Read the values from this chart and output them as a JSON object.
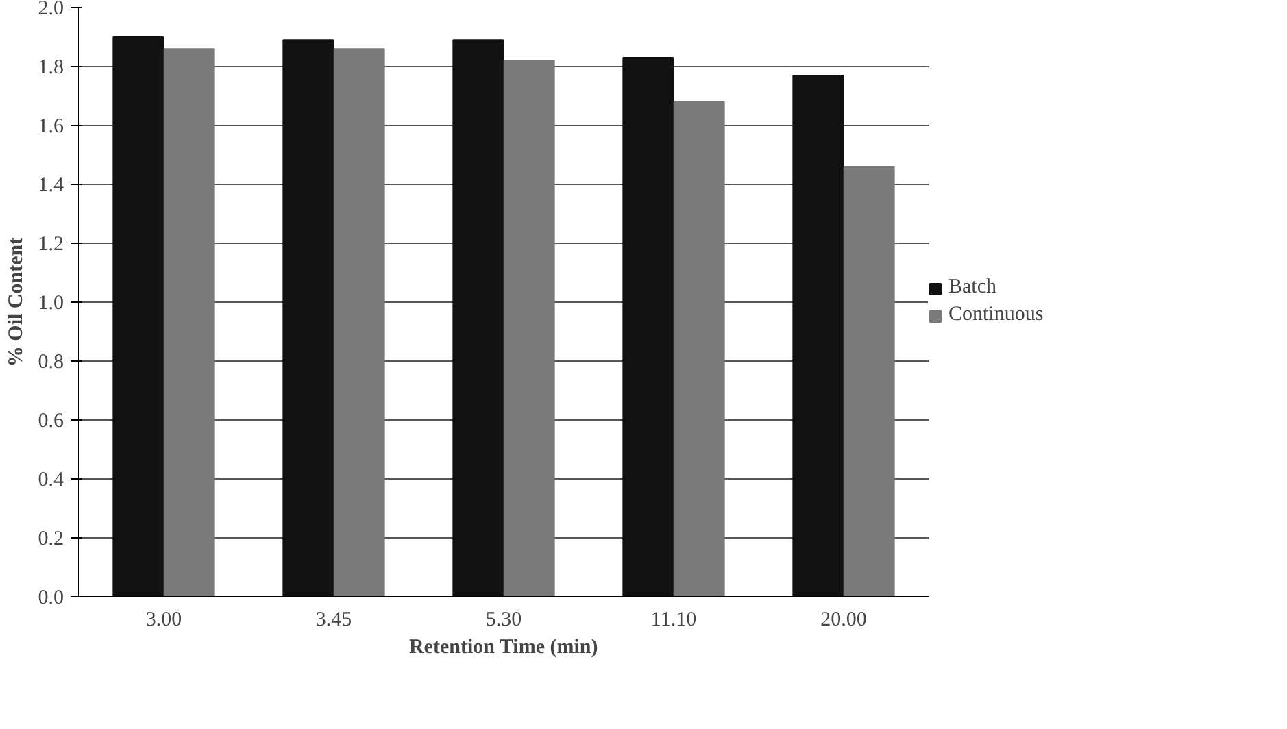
{
  "chart_data": {
    "type": "bar",
    "xlabel": "Retention Time (min)",
    "ylabel": "% Oil Content",
    "categories": [
      "3.00",
      "3.45",
      "5.30",
      "11.10",
      "20.00"
    ],
    "series": [
      {
        "name": "Batch",
        "color": "#111111",
        "values": [
          1.9,
          1.89,
          1.89,
          1.83,
          1.77
        ]
      },
      {
        "name": "Continuous",
        "color": "#7a7a7a",
        "values": [
          1.86,
          1.86,
          1.82,
          1.68,
          1.46
        ]
      }
    ],
    "ylim": [
      0,
      2.0
    ],
    "yticks": [
      {
        "value": 0,
        "label": "0.0"
      },
      0.2,
      0.4,
      0.6,
      0.8,
      {
        "value": 1,
        "label": "1.0"
      },
      1.2,
      1.4,
      1.6,
      1.8,
      {
        "value": 2,
        "label": "2.0"
      }
    ],
    "grid": "y",
    "legend": "right"
  }
}
